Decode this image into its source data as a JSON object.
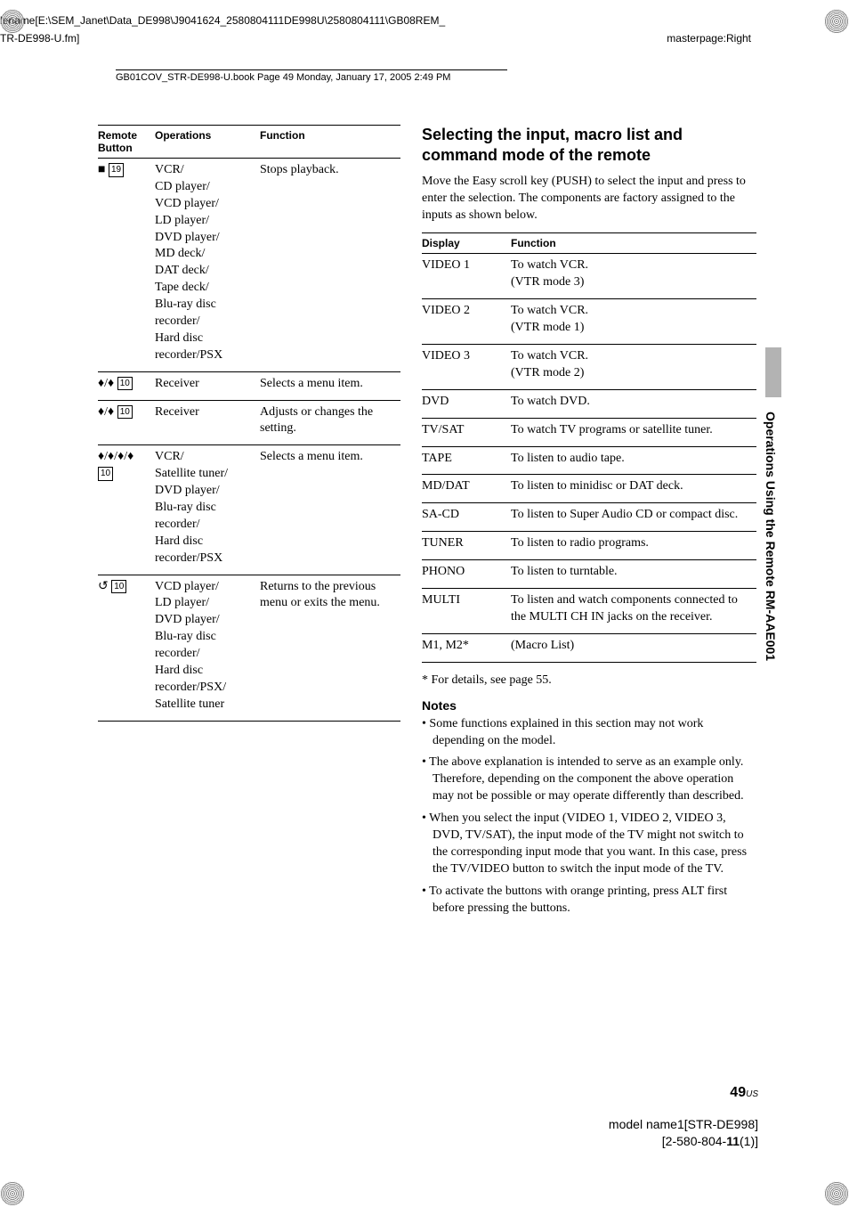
{
  "header": {
    "filepath": "lename[E:\\SEM_Janet\\Data_DE998\\J9041624_2580804111DE998U\\2580804111\\GB08REM_",
    "filepath2": "TR-DE998-U.fm]",
    "masterpage": "masterpage:Right",
    "bookinfo": "GB01COV_STR-DE998-U.book  Page 49  Monday, January 17, 2005  2:49 PM"
  },
  "left_table": {
    "headers": [
      "Remote Button",
      "Operations",
      "Function"
    ],
    "rows": [
      {
        "button_symbol": "■",
        "button_num": "19",
        "operations": "VCR/\nCD player/\nVCD player/\nLD player/\nDVD player/\nMD deck/\nDAT deck/\nTape deck/\nBlu-ray disc recorder/\nHard disc recorder/PSX",
        "function": "Stops playback."
      },
      {
        "button_symbol": "♦/♦",
        "button_num": "10",
        "operations": "Receiver",
        "function": "Selects a menu item."
      },
      {
        "button_symbol": "♦/♦",
        "button_num": "10",
        "operations": "Receiver",
        "function": "Adjusts or changes the setting."
      },
      {
        "button_symbol": "♦/♦/♦/♦",
        "button_num": "10",
        "operations": "VCR/\nSatellite tuner/\nDVD player/\nBlu-ray disc recorder/\nHard disc recorder/PSX",
        "function": "Selects a menu item."
      },
      {
        "button_symbol": "↺",
        "button_num": "10",
        "operations": "VCD player/\nLD player/\nDVD player/\nBlu-ray disc recorder/\nHard disc recorder/PSX/\nSatellite tuner",
        "function": "Returns to the previous menu or exits the menu."
      }
    ]
  },
  "right_col": {
    "heading": "Selecting the input, macro list and command mode of the remote",
    "intro": "Move the Easy scroll key (PUSH) to select the input and press to enter the selection. The components are factory assigned to the inputs as shown below.",
    "table_headers": [
      "Display",
      "Function"
    ],
    "rows": [
      {
        "display": "VIDEO 1",
        "function": "To watch VCR.\n(VTR mode 3)"
      },
      {
        "display": "VIDEO 2",
        "function": "To watch VCR.\n(VTR mode 1)"
      },
      {
        "display": "VIDEO 3",
        "function": "To watch VCR.\n(VTR mode 2)"
      },
      {
        "display": "DVD",
        "function": "To watch DVD."
      },
      {
        "display": "TV/SAT",
        "function": "To watch TV programs or satellite tuner."
      },
      {
        "display": "TAPE",
        "function": "To listen to audio tape."
      },
      {
        "display": "MD/DAT",
        "function": "To listen to minidisc or DAT deck."
      },
      {
        "display": "SA-CD",
        "function": "To listen to Super Audio CD or compact disc."
      },
      {
        "display": "TUNER",
        "function": "To listen to radio programs."
      },
      {
        "display": "PHONO",
        "function": "To listen to turntable."
      },
      {
        "display": "MULTI",
        "function": "To listen and watch components connected to the MULTI CH IN jacks on the receiver."
      },
      {
        "display": "M1, M2*",
        "function": "(Macro List)"
      }
    ],
    "footnote": "* For details, see page 55.",
    "notes_heading": "Notes",
    "notes": [
      "Some functions explained in this section may not work depending on the model.",
      "The above explanation is intended to serve as an example only. Therefore, depending on the component the above operation may not be possible or may operate differently than described.",
      "When you select the input (VIDEO 1, VIDEO 2, VIDEO 3, DVD, TV/SAT), the input mode of the TV might not switch to the corresponding input mode that you want. In this case, press the TV/VIDEO button to switch the input mode of the TV.",
      "To activate the buttons with orange printing, press ALT first before pressing the buttons."
    ]
  },
  "side_text": "Operations Using the Remote RM-AAE001",
  "page_number": "49",
  "page_suffix": "US",
  "footer": {
    "model": "model name1[STR-DE998]",
    "partnum_prefix": "[2-580-804-",
    "partnum_bold": "11",
    "partnum_suffix": "(1)]"
  }
}
